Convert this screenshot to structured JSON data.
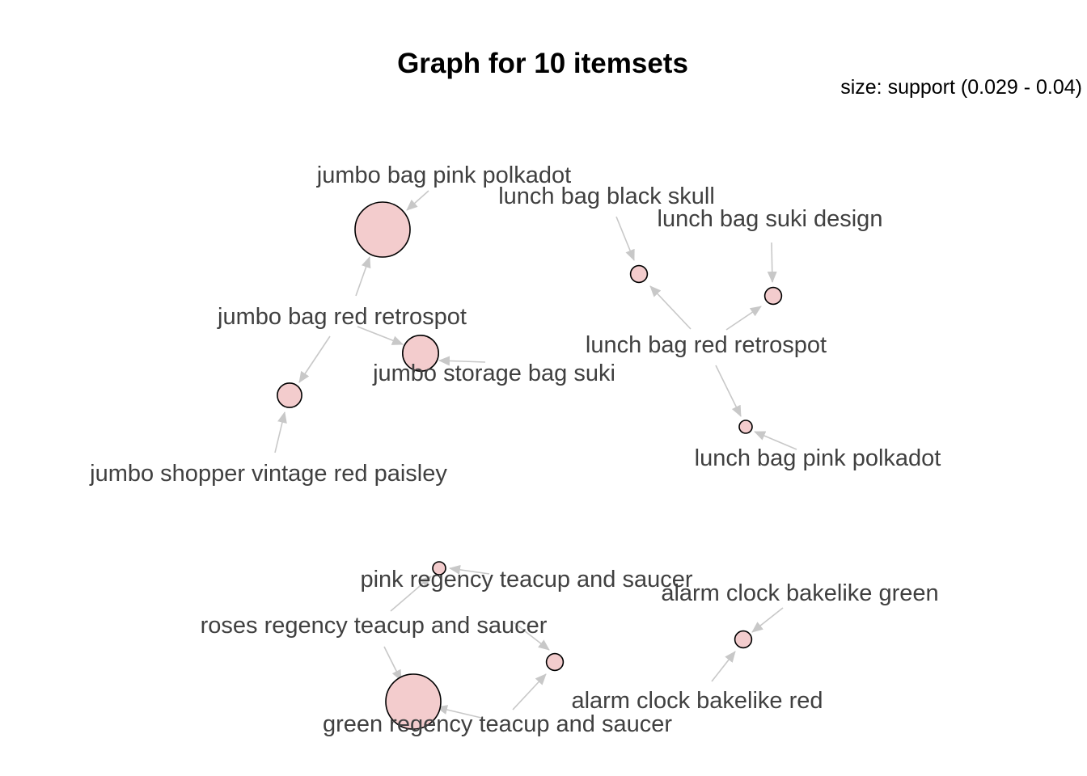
{
  "title": "Graph for 10 itemsets",
  "legend": {
    "text": "size: support (0.029 - 0.04)",
    "size_measure": "support",
    "support_range": [
      0.029,
      0.04
    ]
  },
  "colors": {
    "node_fill": "#f3cccd",
    "node_stroke": "#000000",
    "edge": "#c8c8c8",
    "label": "#404040"
  },
  "items": [
    {
      "id": "jbpp",
      "label": "jumbo bag pink polkadot"
    },
    {
      "id": "jbrr",
      "label": "jumbo bag red retrospot"
    },
    {
      "id": "jsbs",
      "label": "jumbo storage bag suki"
    },
    {
      "id": "jsvrp",
      "label": "jumbo shopper vintage red paisley"
    },
    {
      "id": "lbbs",
      "label": "lunch bag black skull"
    },
    {
      "id": "lbsd",
      "label": "lunch bag suki design"
    },
    {
      "id": "lbrr",
      "label": "lunch bag red retrospot"
    },
    {
      "id": "lbpp",
      "label": "lunch bag pink polkadot"
    },
    {
      "id": "prts",
      "label": "pink regency teacup and saucer"
    },
    {
      "id": "rrts",
      "label": "roses regency teacup and saucer"
    },
    {
      "id": "grts",
      "label": "green regency teacup and saucer"
    },
    {
      "id": "acbg",
      "label": "alarm clock bakelike green"
    },
    {
      "id": "acbr",
      "label": "alarm clock bakelike red"
    }
  ],
  "itemsets": [
    {
      "id": "s1",
      "support": 0.04,
      "members": [
        "jbpp",
        "jbrr"
      ]
    },
    {
      "id": "s2",
      "support": 0.035,
      "members": [
        "jbrr",
        "jsbs"
      ]
    },
    {
      "id": "s3",
      "support": 0.032,
      "members": [
        "jbrr",
        "jsvrp"
      ]
    },
    {
      "id": "s4",
      "support": 0.03,
      "members": [
        "lbbs",
        "lbrr"
      ]
    },
    {
      "id": "s5",
      "support": 0.03,
      "members": [
        "lbsd",
        "lbrr"
      ]
    },
    {
      "id": "s6",
      "support": 0.029,
      "members": [
        "lbrr",
        "lbpp"
      ]
    },
    {
      "id": "s7",
      "support": 0.029,
      "members": [
        "prts",
        "rrts"
      ]
    },
    {
      "id": "s8",
      "support": 0.04,
      "members": [
        "rrts",
        "grts"
      ]
    },
    {
      "id": "s9",
      "support": 0.03,
      "members": [
        "rrts",
        "grts"
      ]
    },
    {
      "id": "s10",
      "support": 0.03,
      "members": [
        "acbg",
        "acbr"
      ]
    }
  ]
}
